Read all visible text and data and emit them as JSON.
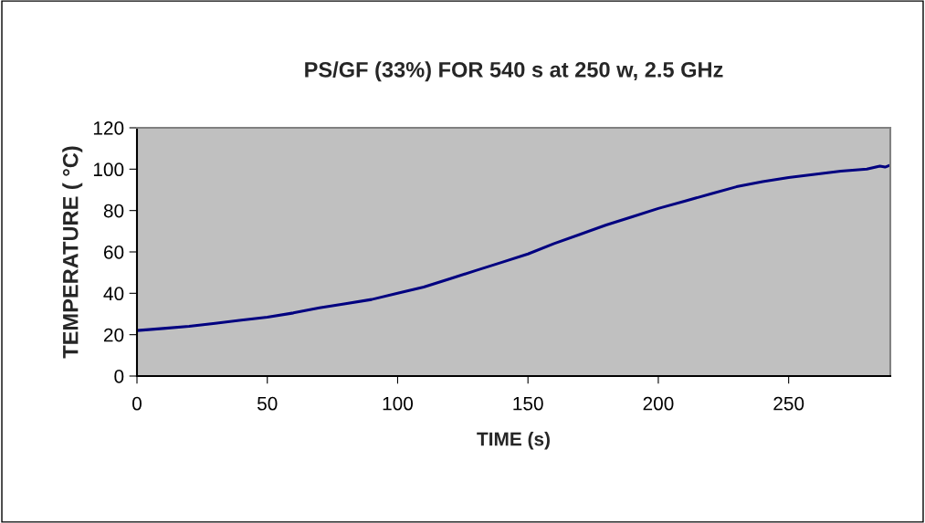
{
  "chart_data": {
    "type": "line",
    "title": "PS/GF (33%) FOR 540 s at 250 w, 2.5 GHz",
    "xlabel": "TIME (s)",
    "ylabel": "TEMPERATURE ( °C)",
    "x": [
      0,
      10,
      20,
      30,
      40,
      50,
      60,
      70,
      80,
      90,
      100,
      110,
      120,
      130,
      140,
      150,
      160,
      170,
      180,
      190,
      200,
      210,
      220,
      230,
      240,
      250,
      260,
      270,
      280,
      285,
      287,
      289
    ],
    "series": [
      {
        "color": "#000080",
        "values": [
          22,
          23,
          24,
          25.5,
          27,
          28.5,
          30.5,
          33,
          35,
          37,
          40,
          43,
          47,
          51,
          55,
          59,
          64,
          68.5,
          73,
          77,
          81,
          84.5,
          88,
          91.5,
          94,
          96,
          97.5,
          99,
          100,
          101.5,
          101,
          102
        ]
      }
    ],
    "xlim": [
      0,
      289
    ],
    "ylim": [
      0,
      120
    ],
    "xticks": [
      0,
      50,
      100,
      150,
      200,
      250
    ],
    "yticks": [
      0,
      20,
      40,
      60,
      80,
      100,
      120
    ],
    "grid": false,
    "legend": false,
    "marker": "none",
    "line_style": "solid"
  }
}
